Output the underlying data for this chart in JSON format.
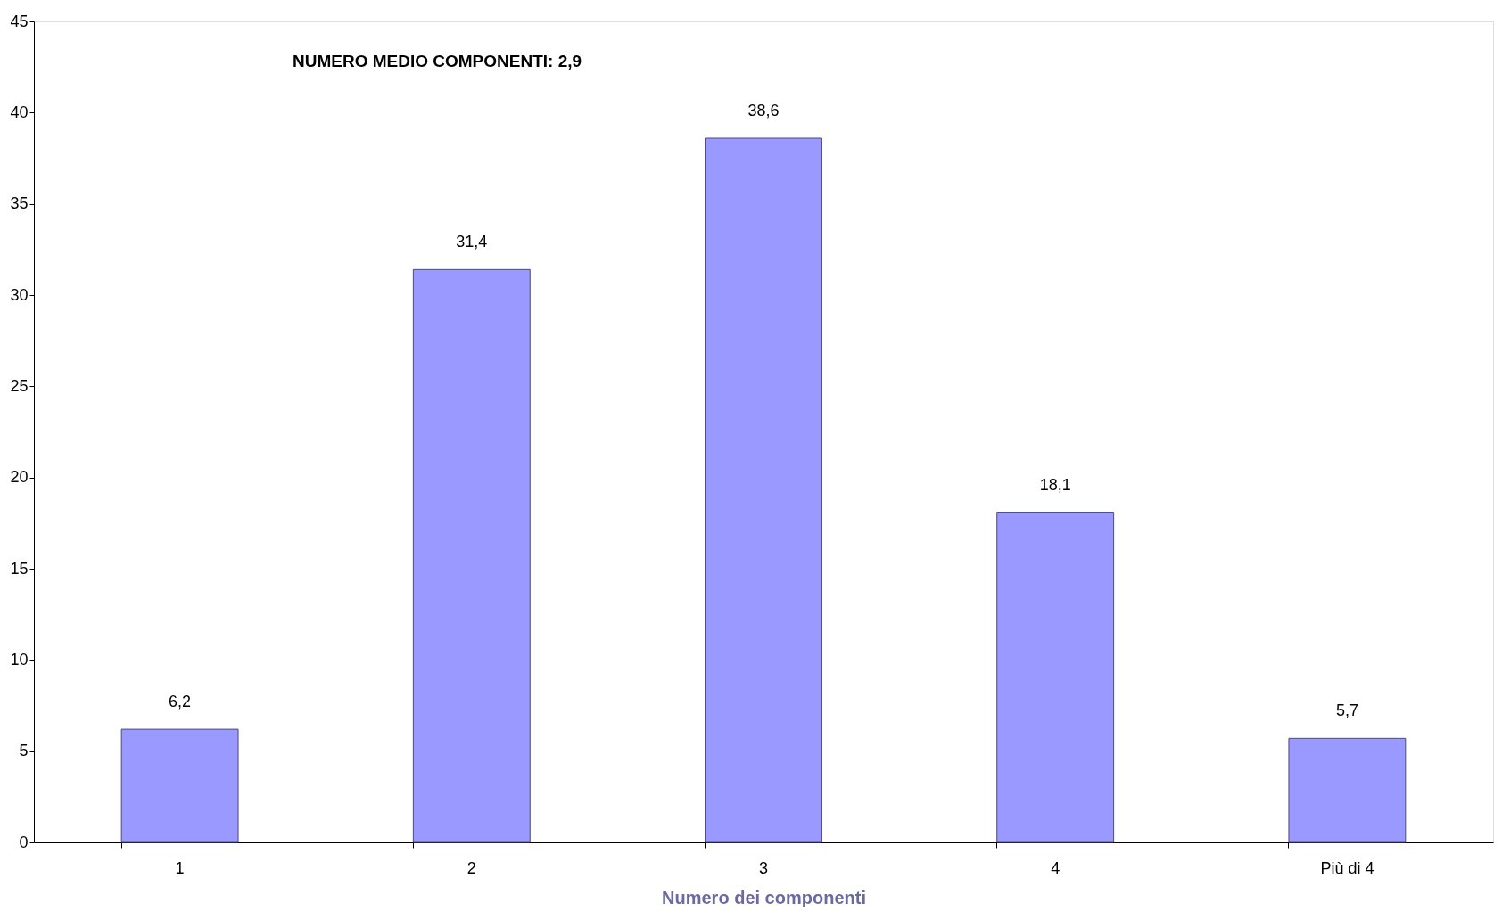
{
  "chart_data": {
    "type": "bar",
    "xlabel": "Numero dei componenti",
    "categories": [
      "1",
      "2",
      "3",
      "4",
      "Più di 4"
    ],
    "values": [
      6.2,
      31.4,
      38.6,
      18.1,
      5.7
    ],
    "value_labels": [
      "6,2",
      "31,4",
      "38,6",
      "18,1",
      "5,7"
    ],
    "color": "#9999ff",
    "ylim": [
      0,
      45
    ],
    "yticks": [
      0,
      5,
      10,
      15,
      20,
      25,
      30,
      35,
      40,
      45
    ],
    "grid": false,
    "annotations": [
      "NUMERO MEDIO COMPONENTI:  2,9"
    ]
  }
}
